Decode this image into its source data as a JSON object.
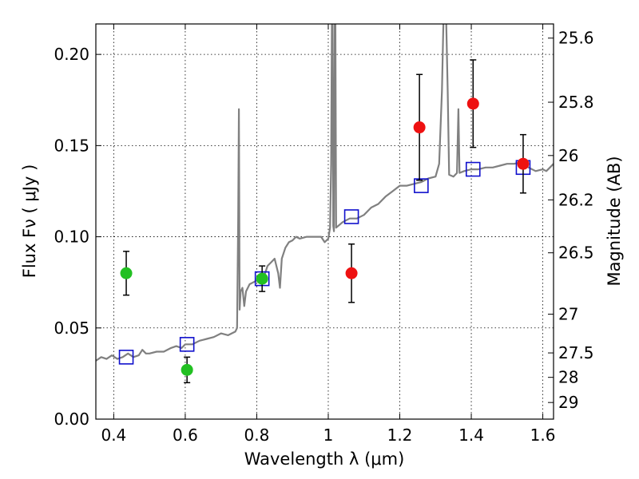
{
  "chart_data": {
    "type": "scatter",
    "xlabel": "Wavelength  λ (μm)",
    "ylabel": "Flux  Fν  ( μJy )",
    "y2label": "Magnitude (AB)",
    "xlim": [
      0.35,
      1.63
    ],
    "ylim": [
      0,
      0.2167
    ],
    "grid": true,
    "x_ticks": [
      0.4,
      0.6,
      0.8,
      1.0,
      1.2,
      1.4,
      1.6
    ],
    "x_tick_labels": [
      "0.4",
      "0.6",
      "0.8",
      "1",
      "1.2",
      "1.4",
      "1.6"
    ],
    "y_ticks": [
      0,
      0.05,
      0.1,
      0.15,
      0.2
    ],
    "y_tick_labels": [
      "0.00",
      "0.05",
      "0.10",
      "0.15",
      "0.20"
    ],
    "mag_ticks": [
      25.6,
      25.8,
      26,
      26.2,
      26.5,
      27,
      27.5,
      28,
      29
    ],
    "mag_tick_labels": [
      "25.6",
      "25.8",
      "26",
      "26.2",
      "26.5",
      "27",
      "27.5",
      "28",
      "29"
    ],
    "colors": {
      "model": "#808080",
      "green": "#22c022",
      "red": "#ee1111",
      "box": "#1010cc",
      "errorbar": "#000000"
    },
    "series": [
      {
        "kind": "line",
        "points": [
          [
            0.35,
            0.032
          ],
          [
            0.365,
            0.034
          ],
          [
            0.38,
            0.033
          ],
          [
            0.395,
            0.035
          ],
          [
            0.41,
            0.033
          ],
          [
            0.425,
            0.034
          ],
          [
            0.44,
            0.036
          ],
          [
            0.455,
            0.034
          ],
          [
            0.47,
            0.035
          ],
          [
            0.48,
            0.038
          ],
          [
            0.49,
            0.036
          ],
          [
            0.5,
            0.036
          ],
          [
            0.52,
            0.037
          ],
          [
            0.54,
            0.037
          ],
          [
            0.56,
            0.039
          ],
          [
            0.575,
            0.04
          ],
          [
            0.59,
            0.039
          ],
          [
            0.6,
            0.041
          ],
          [
            0.62,
            0.041
          ],
          [
            0.64,
            0.043
          ],
          [
            0.66,
            0.044
          ],
          [
            0.68,
            0.045
          ],
          [
            0.7,
            0.047
          ],
          [
            0.72,
            0.046
          ],
          [
            0.74,
            0.048
          ],
          [
            0.745,
            0.05
          ],
          [
            0.748,
            0.11
          ],
          [
            0.75,
            0.17
          ],
          [
            0.752,
            0.06
          ],
          [
            0.755,
            0.07
          ],
          [
            0.76,
            0.072
          ],
          [
            0.765,
            0.062
          ],
          [
            0.77,
            0.07
          ],
          [
            0.78,
            0.074
          ],
          [
            0.79,
            0.075
          ],
          [
            0.8,
            0.076
          ],
          [
            0.81,
            0.076
          ],
          [
            0.82,
            0.078
          ],
          [
            0.83,
            0.084
          ],
          [
            0.84,
            0.086
          ],
          [
            0.85,
            0.088
          ],
          [
            0.86,
            0.08
          ],
          [
            0.865,
            0.072
          ],
          [
            0.87,
            0.088
          ],
          [
            0.88,
            0.094
          ],
          [
            0.89,
            0.097
          ],
          [
            0.9,
            0.098
          ],
          [
            0.91,
            0.1
          ],
          [
            0.92,
            0.099
          ],
          [
            0.94,
            0.1
          ],
          [
            0.96,
            0.1
          ],
          [
            0.98,
            0.1
          ],
          [
            0.99,
            0.097
          ],
          [
            1.0,
            0.099
          ],
          [
            1.005,
            0.105
          ],
          [
            1.008,
            0.14
          ],
          [
            1.01,
            0.217
          ],
          [
            1.012,
            0.217
          ],
          [
            1.014,
            0.106
          ],
          [
            1.016,
            0.103
          ],
          [
            1.018,
            0.217
          ],
          [
            1.02,
            0.217
          ],
          [
            1.022,
            0.105
          ],
          [
            1.04,
            0.108
          ],
          [
            1.06,
            0.11
          ],
          [
            1.08,
            0.11
          ],
          [
            1.1,
            0.112
          ],
          [
            1.12,
            0.116
          ],
          [
            1.14,
            0.118
          ],
          [
            1.16,
            0.122
          ],
          [
            1.18,
            0.125
          ],
          [
            1.2,
            0.128
          ],
          [
            1.22,
            0.128
          ],
          [
            1.24,
            0.129
          ],
          [
            1.26,
            0.13
          ],
          [
            1.28,
            0.132
          ],
          [
            1.3,
            0.133
          ],
          [
            1.31,
            0.14
          ],
          [
            1.318,
            0.18
          ],
          [
            1.322,
            0.217
          ],
          [
            1.33,
            0.217
          ],
          [
            1.334,
            0.18
          ],
          [
            1.338,
            0.134
          ],
          [
            1.35,
            0.133
          ],
          [
            1.36,
            0.135
          ],
          [
            1.364,
            0.17
          ],
          [
            1.367,
            0.135
          ],
          [
            1.38,
            0.136
          ],
          [
            1.4,
            0.137
          ],
          [
            1.42,
            0.137
          ],
          [
            1.44,
            0.138
          ],
          [
            1.46,
            0.138
          ],
          [
            1.48,
            0.139
          ],
          [
            1.5,
            0.14
          ],
          [
            1.52,
            0.14
          ],
          [
            1.54,
            0.141
          ],
          [
            1.56,
            0.138
          ],
          [
            1.58,
            0.136
          ],
          [
            1.6,
            0.137
          ],
          [
            1.61,
            0.136
          ],
          [
            1.62,
            0.138
          ],
          [
            1.63,
            0.14
          ]
        ]
      },
      {
        "kind": "points",
        "marker": "circle",
        "color_key": "green",
        "points": [
          {
            "x": 0.435,
            "y": 0.08,
            "err": 0.012
          },
          {
            "x": 0.605,
            "y": 0.027,
            "err": 0.007
          },
          {
            "x": 0.815,
            "y": 0.077,
            "err": 0.007
          }
        ]
      },
      {
        "kind": "points",
        "marker": "circle",
        "color_key": "red",
        "points": [
          {
            "x": 1.065,
            "y": 0.08,
            "err": 0.016
          },
          {
            "x": 1.255,
            "y": 0.16,
            "err": 0.029
          },
          {
            "x": 1.405,
            "y": 0.173,
            "err": 0.024
          },
          {
            "x": 1.545,
            "y": 0.14,
            "err": 0.016
          }
        ]
      },
      {
        "kind": "points",
        "marker": "square",
        "color_key": "box",
        "points": [
          {
            "x": 0.435,
            "y": 0.034
          },
          {
            "x": 0.605,
            "y": 0.041
          },
          {
            "x": 0.815,
            "y": 0.077
          },
          {
            "x": 1.065,
            "y": 0.111
          },
          {
            "x": 1.26,
            "y": 0.128
          },
          {
            "x": 1.405,
            "y": 0.137
          },
          {
            "x": 1.545,
            "y": 0.138
          }
        ]
      }
    ]
  }
}
